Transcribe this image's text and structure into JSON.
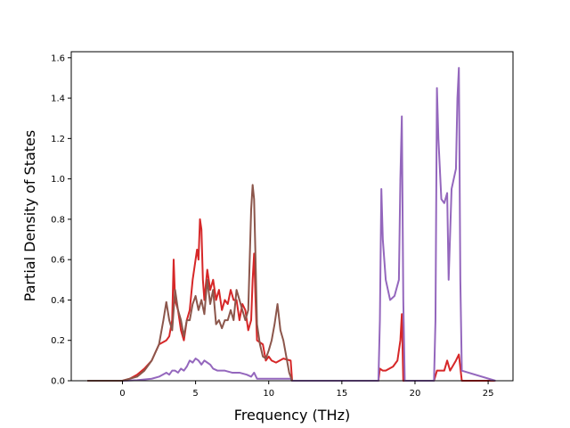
{
  "chart_data": {
    "type": "line",
    "title": "",
    "xlabel": "Frequency (THz)",
    "ylabel": "Partial Density of States",
    "xlim": [
      -3.5,
      26.7
    ],
    "ylim": [
      0,
      1.63
    ],
    "xticks": [
      0,
      5,
      10,
      15,
      20,
      25
    ],
    "yticks": [
      0.0,
      0.2,
      0.4,
      0.6,
      0.8,
      1.0,
      1.2,
      1.4,
      1.6
    ],
    "xtick_labels": [
      "0",
      "5",
      "10",
      "15",
      "20",
      "25"
    ],
    "ytick_labels": [
      "0.0",
      "0.2",
      "0.4",
      "0.6",
      "0.8",
      "1.0",
      "1.2",
      "1.4",
      "1.6"
    ],
    "grid": false,
    "legend": "none",
    "series": [
      {
        "color": "#d62728",
        "x": [
          -2.4,
          0,
          0.5,
          1.0,
          1.5,
          2.0,
          2.5,
          3.0,
          3.2,
          3.4,
          3.5,
          3.6,
          3.8,
          4.0,
          4.2,
          4.4,
          4.6,
          4.8,
          5.0,
          5.1,
          5.2,
          5.3,
          5.4,
          5.5,
          5.6,
          5.8,
          6.0,
          6.2,
          6.4,
          6.6,
          6.8,
          7.0,
          7.2,
          7.4,
          7.6,
          7.8,
          8.0,
          8.2,
          8.4,
          8.6,
          8.8,
          8.9,
          9.0,
          9.1,
          9.2,
          9.4,
          9.6,
          9.8,
          10.0,
          10.2,
          10.5,
          11.0,
          11.5,
          11.6,
          15.0,
          17.5,
          17.6,
          17.8,
          18.0,
          18.5,
          18.8,
          19.0,
          19.1,
          19.2,
          21.3,
          21.5,
          22.0,
          22.2,
          22.4,
          22.8,
          23.0,
          23.2,
          25.5
        ],
        "values": [
          0,
          0,
          0.01,
          0.03,
          0.06,
          0.1,
          0.18,
          0.2,
          0.22,
          0.3,
          0.6,
          0.4,
          0.35,
          0.25,
          0.2,
          0.3,
          0.35,
          0.5,
          0.6,
          0.65,
          0.6,
          0.8,
          0.75,
          0.5,
          0.4,
          0.55,
          0.45,
          0.5,
          0.4,
          0.45,
          0.35,
          0.4,
          0.38,
          0.45,
          0.4,
          0.4,
          0.3,
          0.38,
          0.35,
          0.25,
          0.3,
          0.5,
          0.63,
          0.4,
          0.2,
          0.19,
          0.18,
          0.1,
          0.12,
          0.1,
          0.09,
          0.11,
          0.1,
          0,
          0,
          0,
          0.06,
          0.05,
          0.05,
          0.07,
          0.1,
          0.2,
          0.33,
          0,
          0,
          0.05,
          0.05,
          0.1,
          0.05,
          0.1,
          0.13,
          0,
          0
        ]
      },
      {
        "color": "#9467bd",
        "x": [
          -2.4,
          0,
          1.0,
          2.0,
          2.5,
          3.0,
          3.2,
          3.4,
          3.6,
          3.8,
          4.0,
          4.2,
          4.4,
          4.6,
          4.8,
          5.0,
          5.2,
          5.4,
          5.6,
          5.8,
          6.0,
          6.2,
          6.5,
          7.0,
          7.5,
          8.0,
          8.5,
          8.8,
          9.0,
          9.2,
          9.5,
          10.0,
          11.0,
          11.5,
          11.6,
          17.5,
          17.6,
          17.7,
          17.8,
          18.0,
          18.3,
          18.6,
          18.9,
          19.0,
          19.1,
          19.2,
          19.3,
          21.3,
          21.4,
          21.5,
          21.6,
          21.8,
          22.0,
          22.2,
          22.3,
          22.5,
          22.8,
          22.9,
          23.0,
          23.1,
          23.2,
          25.5
        ],
        "values": [
          0,
          0,
          0.003,
          0.01,
          0.02,
          0.04,
          0.03,
          0.05,
          0.05,
          0.04,
          0.06,
          0.05,
          0.07,
          0.1,
          0.09,
          0.11,
          0.1,
          0.08,
          0.1,
          0.09,
          0.08,
          0.06,
          0.05,
          0.05,
          0.04,
          0.04,
          0.03,
          0.02,
          0.04,
          0.01,
          0.01,
          0.01,
          0.01,
          0.01,
          0,
          0,
          0.3,
          0.95,
          0.7,
          0.5,
          0.4,
          0.42,
          0.5,
          1.0,
          1.31,
          0.4,
          0,
          0,
          0.3,
          1.45,
          1.2,
          0.9,
          0.88,
          0.93,
          0.5,
          0.95,
          1.05,
          1.4,
          1.55,
          0.5,
          0.05,
          0
        ]
      },
      {
        "color": "#8c564b",
        "x": [
          -2.4,
          0,
          0.5,
          1.0,
          1.5,
          2.0,
          2.5,
          2.8,
          3.0,
          3.2,
          3.4,
          3.6,
          3.8,
          4.0,
          4.2,
          4.4,
          4.6,
          4.8,
          5.0,
          5.2,
          5.4,
          5.6,
          5.8,
          6.0,
          6.2,
          6.4,
          6.6,
          6.8,
          7.0,
          7.2,
          7.4,
          7.6,
          7.8,
          8.0,
          8.2,
          8.4,
          8.6,
          8.8,
          8.9,
          9.0,
          9.1,
          9.2,
          9.4,
          9.6,
          9.8,
          10.0,
          10.2,
          10.4,
          10.6,
          10.8,
          11.0,
          11.2,
          11.4,
          11.6
        ],
        "values": [
          0,
          0,
          0.01,
          0.02,
          0.05,
          0.1,
          0.18,
          0.3,
          0.39,
          0.3,
          0.25,
          0.45,
          0.35,
          0.3,
          0.22,
          0.3,
          0.3,
          0.38,
          0.42,
          0.35,
          0.4,
          0.33,
          0.5,
          0.38,
          0.45,
          0.28,
          0.3,
          0.26,
          0.3,
          0.3,
          0.35,
          0.3,
          0.45,
          0.4,
          0.35,
          0.3,
          0.35,
          0.85,
          0.97,
          0.9,
          0.6,
          0.28,
          0.18,
          0.12,
          0.11,
          0.15,
          0.2,
          0.28,
          0.38,
          0.25,
          0.2,
          0.12,
          0.04,
          0
        ]
      }
    ]
  }
}
